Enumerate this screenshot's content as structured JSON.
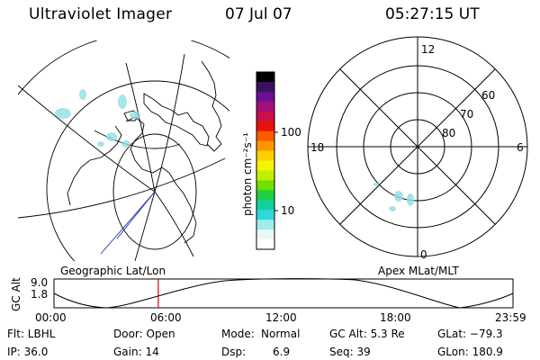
{
  "header": {
    "title": "Ultraviolet Imager",
    "date": "07 Jul 07",
    "time": "05:27:15 UT"
  },
  "colorbar": {
    "unit_label": "photon cm⁻²s⁻¹",
    "ticks": [
      "100",
      "10"
    ],
    "colors": [
      "#000000",
      "#3a1060",
      "#6a1090",
      "#a0107a",
      "#c8104a",
      "#e81010",
      "#ff5a00",
      "#ff9600",
      "#ffd000",
      "#f2f500",
      "#c0ef00",
      "#70e000",
      "#20d040",
      "#10d0a0",
      "#30d8d8",
      "#a0ecec",
      "#e8f8f8",
      "#ffffff"
    ]
  },
  "polar": {
    "mlt_labels": {
      "top": "12",
      "left": "18",
      "right": "6",
      "bottom": "0"
    },
    "lat_labels": [
      "60",
      "70",
      "80"
    ]
  },
  "panel_labels": {
    "left": "Geographic Lat/Lon",
    "right": "Apex MLat/MLT"
  },
  "altitude_plot": {
    "ylabel": "GC Alt",
    "yticks": [
      "9.0",
      "1.8"
    ],
    "xticks": [
      "00:00",
      "06:00",
      "12:00",
      "18:00",
      "23:59"
    ],
    "marker_hour": 5.454,
    "marker_color": "#dd0000"
  },
  "status": {
    "flt": "Flt: LBHL",
    "ip": "IP: 36.0",
    "door": "Door: Open",
    "gain": "Gain: 14",
    "mode_label": "Mode:",
    "mode_value": "Normal",
    "dsp_label": "Dsp:",
    "dsp_value": "6.9",
    "gcalt": "GC Alt: 5.3 Re",
    "seq": "Seq: 39",
    "glat": "GLat: −79.3",
    "glon": "GLon: 180.9"
  }
}
